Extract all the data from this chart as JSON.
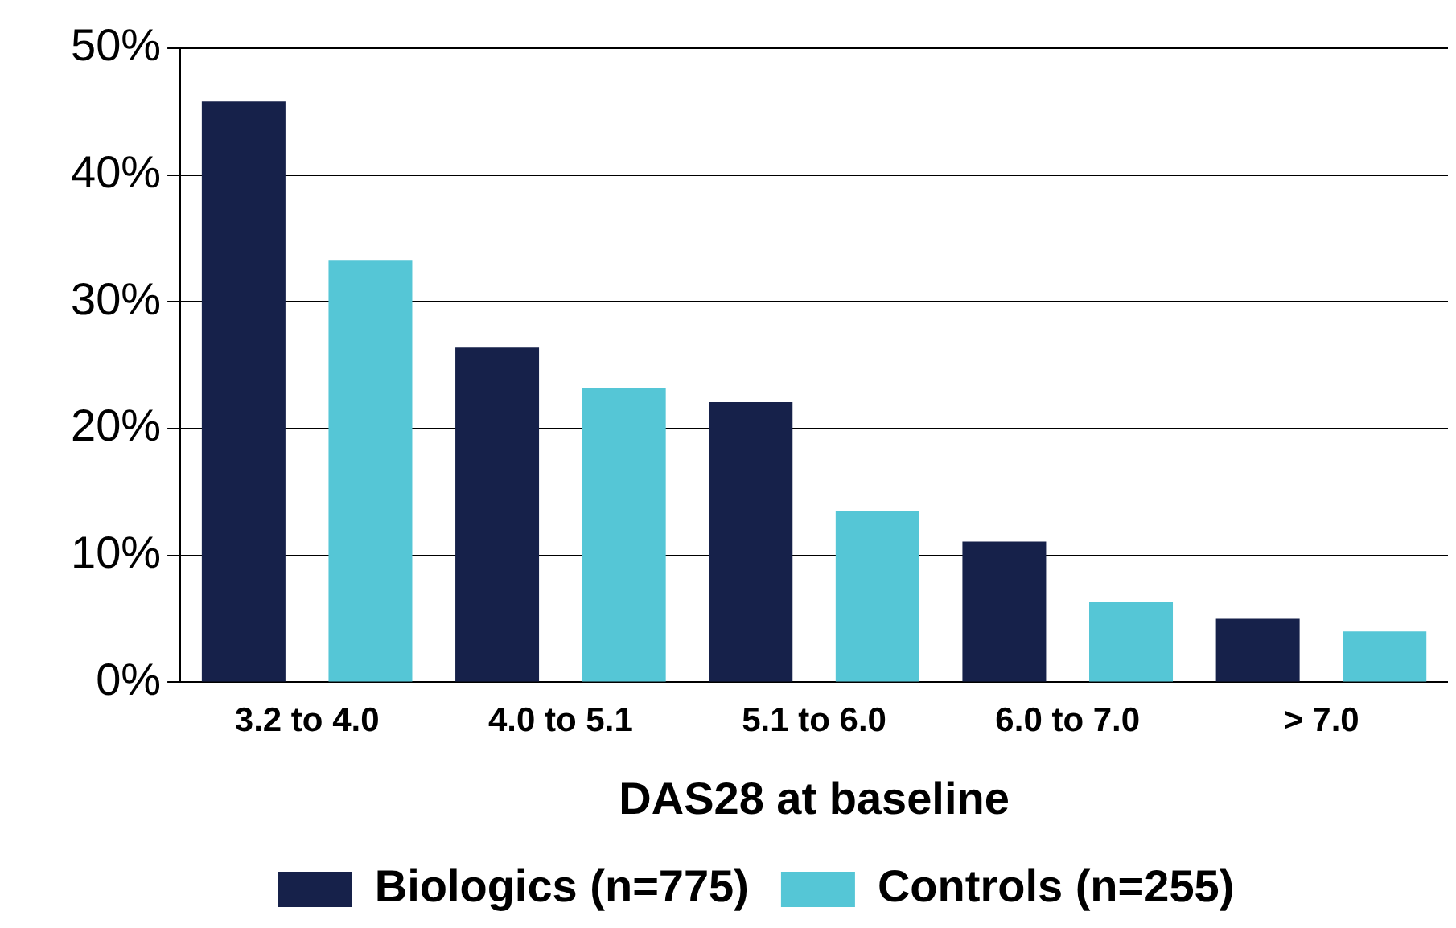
{
  "chart_data": {
    "type": "bar",
    "xlabel": "DAS28 at baseline",
    "categories": [
      "3.2 to 4.0",
      "4.0 to 5.1",
      "5.1 to 6.0",
      "6.0 to 7.0",
      "> 7.0"
    ],
    "series": [
      {
        "name": "Biologics (n=775)",
        "color": "#16214a",
        "values": [
          45.8,
          26.4,
          22.1,
          11.1,
          5.0
        ]
      },
      {
        "name": "Controls (n=255)",
        "color": "#55c6d6",
        "values": [
          33.3,
          23.2,
          13.5,
          6.3,
          4.0
        ]
      }
    ],
    "ylim": [
      0,
      50
    ],
    "yticks": [
      {
        "value": 0,
        "label": "0%"
      },
      {
        "value": 10,
        "label": "10%"
      },
      {
        "value": 20,
        "label": "20%"
      },
      {
        "value": 30,
        "label": "30%"
      },
      {
        "value": 40,
        "label": "40%"
      },
      {
        "value": 50,
        "label": "50%"
      }
    ],
    "grid": "y",
    "legend": "bottom"
  }
}
